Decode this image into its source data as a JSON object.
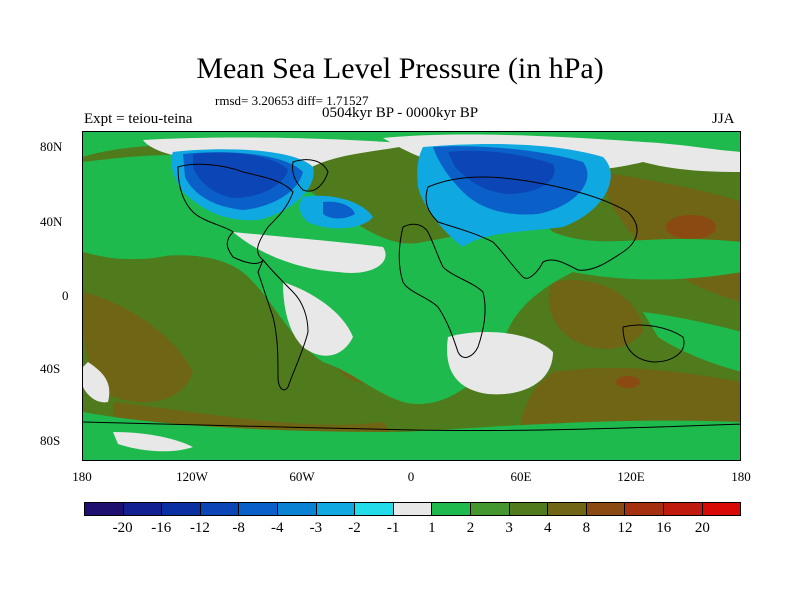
{
  "title": "Mean Sea Level Pressure (in hPa)",
  "stats": "rmsd= 3.20653  diff= 1.71527",
  "experiment": "Expt = teiou-teina",
  "period": "0504kyr BP - 0000kyr BP",
  "season": "JJA",
  "axes": {
    "y_ticks": [
      "80N",
      "40N",
      "0",
      "40S",
      "80S"
    ],
    "x_ticks": [
      "180",
      "120W",
      "60W",
      "0",
      "60E",
      "120E",
      "180"
    ]
  },
  "colorbar": {
    "labels": [
      "-20",
      "-16",
      "-12",
      "-8",
      "-4",
      "-3",
      "-2",
      "-1",
      "1",
      "2",
      "3",
      "4",
      "8",
      "12",
      "16",
      "20"
    ],
    "colors": [
      "#1f0f6e",
      "#13208f",
      "#0a2fa3",
      "#0c45b6",
      "#0a60c8",
      "#0a82d4",
      "#10a8e0",
      "#22dcea",
      "#e8e8e8",
      "#1fba4e",
      "#43972e",
      "#4f7b1d",
      "#6f6515",
      "#8a4a12",
      "#a5300f",
      "#c0190e",
      "#d80a08"
    ]
  }
}
